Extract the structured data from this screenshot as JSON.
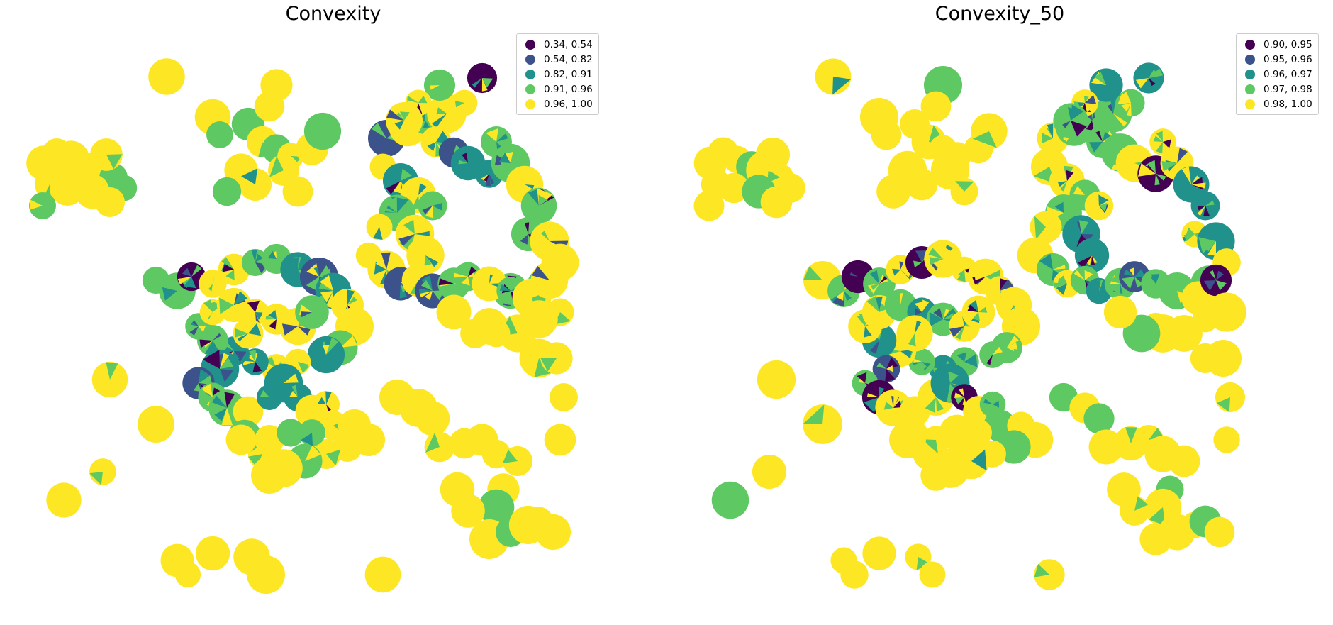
{
  "maps": [
    {
      "title": "Convexity",
      "legend": [
        {
          "label": "0.34, 0.54",
          "color": "#440154"
        },
        {
          "label": "0.54, 0.82",
          "color": "#3b528b"
        },
        {
          "label": "0.82, 0.91",
          "color": "#21918c"
        },
        {
          "label": "0.91, 0.96",
          "color": "#5ec962"
        },
        {
          "label": "0.96, 1.00",
          "color": "#fde725"
        }
      ]
    },
    {
      "title": "Convexity_50",
      "legend": [
        {
          "label": "0.90, 0.95",
          "color": "#440154"
        },
        {
          "label": "0.95, 0.96",
          "color": "#3b528b"
        },
        {
          "label": "0.96, 0.97",
          "color": "#21918c"
        },
        {
          "label": "0.97, 0.98",
          "color": "#5ec962"
        },
        {
          "label": "0.98, 1.00",
          "color": "#fde725"
        }
      ]
    }
  ]
}
